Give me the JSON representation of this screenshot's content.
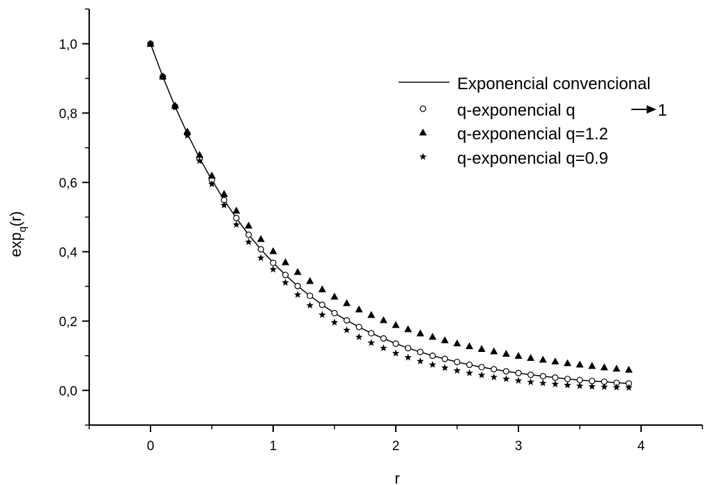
{
  "chart_data": {
    "type": "scatter",
    "xlabel": "r",
    "ylabel_base": "exp",
    "ylabel_sub": "q",
    "ylabel_arg": "(r)",
    "xlim": [
      -0.5,
      4.5
    ],
    "ylim": [
      -0.1,
      1.1
    ],
    "x_ticks": [
      0,
      1,
      2,
      3,
      4
    ],
    "x_tick_labels": [
      "0",
      "1",
      "2",
      "3",
      "4"
    ],
    "y_ticks": [
      0.0,
      0.2,
      0.4,
      0.6,
      0.8,
      1.0
    ],
    "y_tick_labels": [
      "0,0",
      "0,2",
      "0,4",
      "0,6",
      "0,8",
      "1,0"
    ],
    "grid": false,
    "legend_position": "top-right",
    "x": [
      0.0,
      0.1,
      0.2,
      0.3,
      0.4,
      0.5,
      0.6,
      0.7,
      0.8,
      0.9,
      1.0,
      1.1,
      1.2,
      1.3,
      1.4,
      1.5,
      1.6,
      1.7,
      1.8,
      1.9,
      2.0,
      2.1,
      2.2,
      2.3,
      2.4,
      2.5,
      2.6,
      2.7,
      2.8,
      2.9,
      3.0,
      3.1,
      3.2,
      3.3,
      3.4,
      3.5,
      3.6,
      3.7,
      3.8,
      3.9
    ],
    "series": [
      {
        "name": "Exponencial convencional",
        "style": "line",
        "color": "#000000",
        "values": [
          1.0,
          0.905,
          0.819,
          0.741,
          0.67,
          0.607,
          0.549,
          0.497,
          0.449,
          0.407,
          0.368,
          0.333,
          0.301,
          0.273,
          0.247,
          0.223,
          0.202,
          0.183,
          0.165,
          0.15,
          0.135,
          0.122,
          0.111,
          0.1,
          0.091,
          0.082,
          0.074,
          0.067,
          0.061,
          0.055,
          0.05,
          0.045,
          0.041,
          0.037,
          0.033,
          0.03,
          0.027,
          0.025,
          0.022,
          0.02
        ]
      },
      {
        "name": "q-exponencial  q → 1",
        "legend_label_main": "q-exponencial  q",
        "legend_label_end": "1",
        "style": "open-circle",
        "color": "#000000",
        "values": [
          1.0,
          0.905,
          0.819,
          0.741,
          0.67,
          0.607,
          0.549,
          0.497,
          0.449,
          0.407,
          0.368,
          0.333,
          0.301,
          0.273,
          0.247,
          0.223,
          0.202,
          0.183,
          0.165,
          0.15,
          0.135,
          0.122,
          0.111,
          0.1,
          0.091,
          0.082,
          0.074,
          0.067,
          0.061,
          0.055,
          0.05,
          0.045,
          0.041,
          0.037,
          0.033,
          0.03,
          0.027,
          0.025,
          0.022,
          0.02
        ]
      },
      {
        "name": "q-exponencial  q=1.2",
        "style": "filled-triangle",
        "color": "#000000",
        "values": [
          1.0,
          0.906,
          0.822,
          0.747,
          0.68,
          0.62,
          0.567,
          0.519,
          0.476,
          0.437,
          0.402,
          0.37,
          0.342,
          0.316,
          0.292,
          0.271,
          0.252,
          0.234,
          0.218,
          0.203,
          0.189,
          0.177,
          0.165,
          0.155,
          0.145,
          0.136,
          0.128,
          0.12,
          0.113,
          0.106,
          0.1,
          0.094,
          0.089,
          0.084,
          0.079,
          0.075,
          0.071,
          0.067,
          0.063,
          0.06
        ]
      },
      {
        "name": "q-exponencial  q=0.9",
        "style": "filled-star",
        "color": "#000000",
        "values": [
          1.0,
          0.904,
          0.816,
          0.735,
          0.662,
          0.595,
          0.534,
          0.478,
          0.428,
          0.382,
          0.349,
          0.311,
          0.276,
          0.245,
          0.218,
          0.196,
          0.174,
          0.154,
          0.137,
          0.122,
          0.107,
          0.095,
          0.084,
          0.074,
          0.065,
          0.057,
          0.05,
          0.044,
          0.038,
          0.033,
          0.028,
          0.024,
          0.021,
          0.018,
          0.015,
          0.013,
          0.011,
          0.01,
          0.009,
          0.008
        ]
      }
    ]
  }
}
